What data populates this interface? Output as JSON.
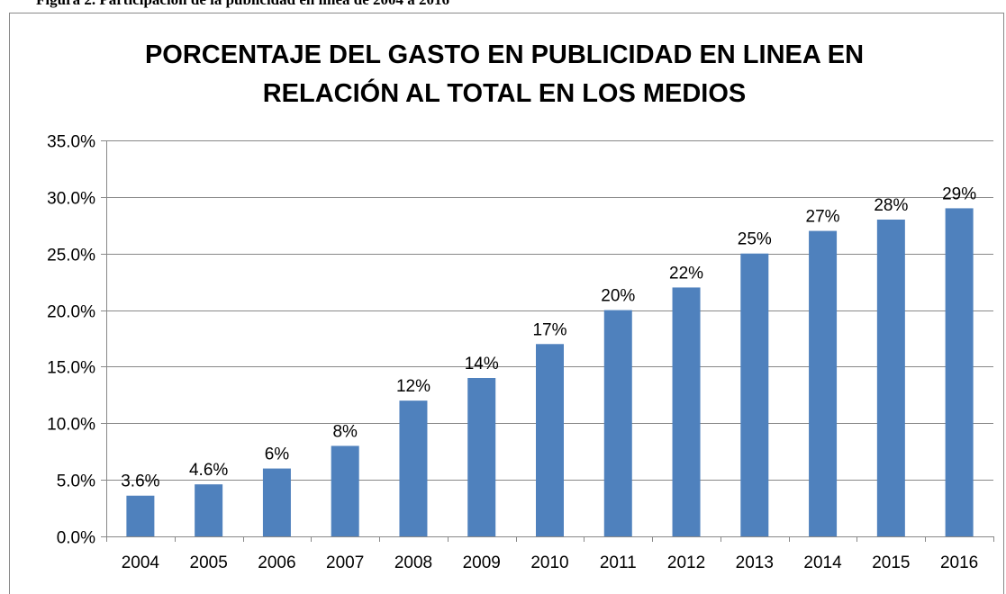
{
  "chart_data": {
    "type": "bar",
    "caption": "Figura 2. Participación de la publicidad en línea de 2004 a 2016",
    "title": [
      "PORCENTAJE DEL GASTO EN PUBLICIDAD EN LINEA EN",
      "RELACIÓN AL TOTAL EN LOS MEDIOS"
    ],
    "categories": [
      "2004",
      "2005",
      "2006",
      "2007",
      "2008",
      "2009",
      "2010",
      "2011",
      "2012",
      "2013",
      "2014",
      "2015",
      "2016"
    ],
    "values": [
      3.6,
      4.6,
      6,
      8,
      12,
      14,
      17,
      20,
      22,
      25,
      27,
      28,
      29
    ],
    "value_labels": [
      "3.6%",
      "4.6%",
      "6%",
      "8%",
      "12%",
      "14%",
      "17%",
      "20%",
      "22%",
      "25%",
      "27%",
      "28%",
      "29%"
    ],
    "color": "#4f81bd",
    "ylim": [
      0,
      35
    ],
    "yticks": [
      {
        "value": 0,
        "label": "0.0%"
      },
      {
        "value": 5,
        "label": "5.0%"
      },
      {
        "value": 10,
        "label": "10.0%"
      },
      {
        "value": 15,
        "label": "15.0%"
      },
      {
        "value": 20,
        "label": "20.0%"
      },
      {
        "value": 25,
        "label": "25.0%"
      },
      {
        "value": 30,
        "label": "30.0%"
      },
      {
        "value": 35,
        "label": "35.0%"
      }
    ],
    "grid": true
  }
}
